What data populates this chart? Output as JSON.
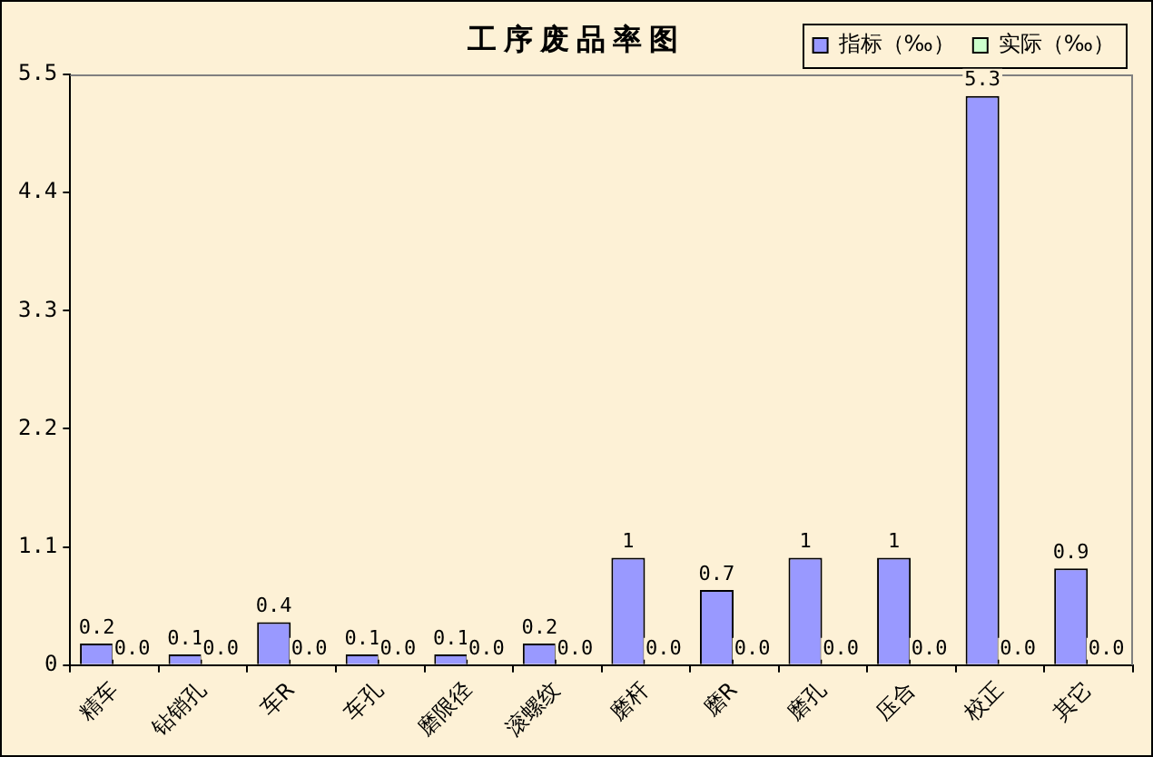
{
  "chart_data": {
    "type": "bar",
    "title": "工序废品率图",
    "categories": [
      "精车",
      "钻销孔",
      "车R",
      "车孔",
      "磨限径",
      "滚螺纹",
      "磨杆",
      "磨R",
      "磨孔",
      "压合",
      "校正",
      "其它"
    ],
    "series": [
      {
        "name": "指标（‰）",
        "color": "#9999ff",
        "values": [
          0.2,
          0.1,
          0.4,
          0.1,
          0.1,
          0.2,
          1,
          0.7,
          1,
          1,
          5.3,
          0.9
        ],
        "value_labels": [
          "0.2",
          "0.1",
          "0.4",
          "0.1",
          "0.1",
          "0.2",
          "1",
          "0.7",
          "1",
          "1",
          "5.3",
          "0.9"
        ]
      },
      {
        "name": "实际（‰）",
        "color": "#ccffcc",
        "values": [
          0,
          0,
          0,
          0,
          0,
          0,
          0,
          0,
          0,
          0,
          0,
          0
        ],
        "value_labels": [
          "0.0",
          "0.0",
          "0.0",
          "0.0",
          "0.0",
          "0.0",
          "0.0",
          "0.0",
          "0.0",
          "0.0",
          "0.0",
          "0.0"
        ]
      }
    ],
    "ylim": [
      0,
      5.5
    ],
    "yticks": [
      0,
      1.1,
      2.2,
      3.3,
      4.4,
      5.5
    ],
    "grid": false,
    "legend": "top right"
  }
}
